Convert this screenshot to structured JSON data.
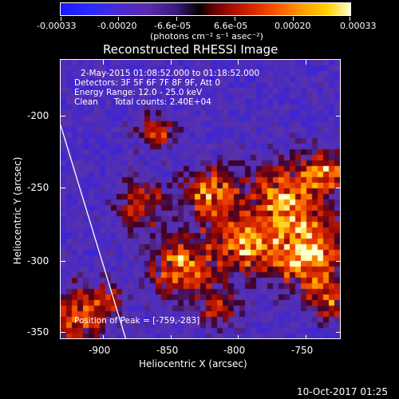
{
  "colorbar": {
    "tick_labels": [
      "-0.00033",
      "-0.00020",
      "-6.6e-05",
      "6.6e-05",
      "0.00020",
      "0.00033"
    ],
    "units": "(photons cm⁻² s⁻¹ asec⁻²)"
  },
  "plot": {
    "title": "Reconstructed RHESSI Image",
    "annotations": {
      "time": "2-May-2015 01:08:52.000 to 01:18:52.000",
      "detectors": "Detectors: 3F 5F 6F 7F 8F 9F, Att 0",
      "energy": "Energy Range: 12.0 - 25.0 keV",
      "clean": "Clean      Total counts: 2.40E+04",
      "peak": "Position of Peak = [-759,-283]"
    },
    "xlabel": "Heliocentric X (arcsec)",
    "ylabel": "Heliocentric Y (arcsec)",
    "x_ticks": [
      "-900",
      "-850",
      "-800",
      "-750"
    ],
    "y_ticks": [
      "-200",
      "-250",
      "-300",
      "-350"
    ]
  },
  "footer": {
    "timestamp": "10-Oct-2017 01:25"
  }
}
